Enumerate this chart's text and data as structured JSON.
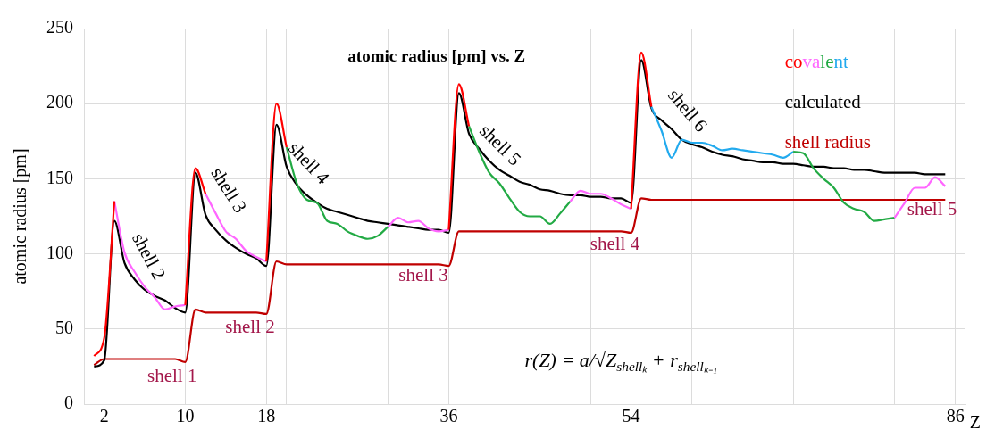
{
  "chart_data": {
    "type": "line",
    "title": "atomic radius [pm] vs. Z",
    "xlabel": "Z",
    "ylabel": "atomic radius [pm]",
    "x": [
      1,
      2,
      3,
      4,
      5,
      6,
      7,
      8,
      9,
      10,
      11,
      12,
      13,
      14,
      15,
      16,
      17,
      18,
      19,
      20,
      21,
      22,
      23,
      24,
      25,
      26,
      27,
      28,
      29,
      30,
      31,
      32,
      33,
      34,
      35,
      36,
      37,
      38,
      39,
      40,
      41,
      42,
      43,
      44,
      45,
      46,
      47,
      48,
      49,
      50,
      51,
      52,
      53,
      54,
      55,
      56,
      57,
      58,
      59,
      60,
      61,
      62,
      63,
      64,
      65,
      66,
      67,
      68,
      69,
      70,
      71,
      72,
      73,
      74,
      75,
      76,
      77,
      78,
      79,
      80,
      81,
      82,
      83,
      84,
      85
    ],
    "series": [
      {
        "name": "co",
        "color": "#ff0000",
        "values": [
          32,
          44,
          135,
          null,
          null,
          null,
          null,
          null,
          null,
          66,
          157,
          140,
          null,
          null,
          null,
          null,
          null,
          95,
          200,
          171,
          null,
          null,
          null,
          null,
          null,
          null,
          null,
          null,
          null,
          null,
          null,
          null,
          null,
          null,
          null,
          116,
          213,
          185,
          null,
          null,
          null,
          null,
          null,
          null,
          null,
          null,
          null,
          null,
          null,
          null,
          null,
          null,
          null,
          130,
          234,
          198,
          null,
          null,
          null,
          null,
          null,
          null,
          null,
          null,
          null,
          null,
          null,
          null,
          null,
          null,
          null,
          null,
          null,
          null,
          null,
          null,
          null,
          null,
          null,
          null,
          null,
          null,
          null,
          null,
          null
        ]
      },
      {
        "name": "va",
        "color": "#ff66ff",
        "values": [
          null,
          null,
          135,
          101,
          88,
          78,
          71,
          63,
          65,
          66,
          null,
          140,
          127,
          115,
          110,
          102,
          98,
          95,
          null,
          null,
          null,
          null,
          null,
          null,
          null,
          null,
          null,
          null,
          null,
          118,
          124,
          121,
          122,
          117,
          115,
          116,
          null,
          null,
          null,
          null,
          null,
          null,
          null,
          null,
          null,
          null,
          null,
          135,
          142,
          140,
          140,
          137,
          133,
          130,
          null,
          null,
          null,
          null,
          null,
          null,
          null,
          null,
          null,
          null,
          null,
          null,
          null,
          null,
          null,
          null,
          null,
          null,
          null,
          null,
          null,
          null,
          null,
          null,
          null,
          124,
          134,
          144,
          144,
          151,
          145
        ]
      },
      {
        "name": "le",
        "color": "#22aa44",
        "values": [
          null,
          null,
          null,
          null,
          null,
          null,
          null,
          null,
          null,
          null,
          null,
          null,
          null,
          null,
          null,
          null,
          null,
          null,
          null,
          171,
          147,
          136,
          134,
          122,
          120,
          115,
          112,
          110,
          112,
          118,
          null,
          null,
          null,
          null,
          null,
          null,
          null,
          185,
          168,
          154,
          147,
          137,
          128,
          125,
          125,
          120,
          127,
          135,
          null,
          null,
          null,
          null,
          null,
          null,
          null,
          null,
          null,
          null,
          null,
          null,
          null,
          null,
          null,
          null,
          null,
          null,
          null,
          null,
          null,
          168,
          167,
          157,
          150,
          144,
          134,
          130,
          128,
          122,
          123,
          124,
          null,
          null,
          null,
          null,
          null
        ]
      },
      {
        "name": "nt",
        "color": "#22aaee",
        "values": [
          null,
          null,
          null,
          null,
          null,
          null,
          null,
          null,
          null,
          null,
          null,
          null,
          null,
          null,
          null,
          null,
          null,
          null,
          null,
          null,
          null,
          null,
          null,
          null,
          null,
          null,
          null,
          null,
          null,
          null,
          null,
          null,
          null,
          null,
          null,
          null,
          null,
          null,
          null,
          null,
          null,
          null,
          null,
          null,
          null,
          null,
          null,
          null,
          null,
          null,
          null,
          null,
          null,
          null,
          null,
          198,
          182,
          164,
          176,
          174,
          174,
          172,
          169,
          170,
          169,
          168,
          167,
          166,
          164,
          168,
          null,
          null,
          null,
          null,
          null,
          null,
          null,
          null,
          null,
          null,
          null,
          null,
          null,
          null,
          null
        ]
      },
      {
        "name": "calculated",
        "color": "#000000",
        "values": [
          25,
          29,
          122,
          94,
          83,
          76,
          72,
          69,
          64,
          61,
          154,
          126,
          116,
          109,
          104,
          100,
          97,
          92,
          186,
          158,
          146,
          139,
          134,
          130,
          128,
          126,
          124,
          122,
          121,
          120,
          119,
          118,
          117,
          116,
          116,
          114,
          207,
          180,
          170,
          162,
          156,
          152,
          148,
          146,
          143,
          142,
          140,
          139,
          139,
          138,
          138,
          137,
          137,
          134,
          229,
          197,
          189,
          183,
          176,
          173,
          171,
          168,
          166,
          165,
          163,
          162,
          161,
          161,
          160,
          160,
          159,
          158,
          158,
          157,
          157,
          156,
          156,
          155,
          154,
          154,
          154,
          154,
          153,
          153,
          153
        ]
      },
      {
        "name": "shell radius",
        "color": "#c00000",
        "values": [
          26,
          30,
          30,
          30,
          30,
          30,
          30,
          30,
          30,
          28,
          63,
          61,
          61,
          61,
          61,
          61,
          61,
          60,
          95,
          93,
          93,
          93,
          93,
          93,
          93,
          93,
          93,
          93,
          93,
          93,
          93,
          93,
          93,
          93,
          93,
          92,
          115,
          115,
          115,
          115,
          115,
          115,
          115,
          115,
          115,
          115,
          115,
          115,
          115,
          115,
          115,
          115,
          115,
          114,
          137,
          136,
          136,
          136,
          136,
          136,
          136,
          136,
          136,
          136,
          136,
          136,
          136,
          136,
          136,
          136,
          136,
          136,
          136,
          136,
          136,
          136,
          136,
          136,
          136,
          136,
          136,
          136,
          136,
          136,
          136
        ]
      }
    ],
    "xlim": [
      0,
      87
    ],
    "xticks": [
      2,
      10,
      18,
      {
        "value": 20,
        "label": null
      },
      {
        "value": 30,
        "label": null
      },
      36,
      {
        "value": 40,
        "label": null
      },
      {
        "value": 50,
        "label": null
      },
      54,
      {
        "value": 60,
        "label": null
      },
      {
        "value": 70,
        "label": null
      },
      {
        "value": 80,
        "label": null
      },
      86
    ],
    "ylim": [
      0,
      250
    ],
    "yticks": [
      0,
      50,
      100,
      150,
      200,
      250
    ],
    "grid": true,
    "legend": "top right",
    "marker": "none",
    "line_style": "solid",
    "annotations": [
      "shell 1",
      "shell 2",
      "shell 3",
      "shell 4",
      "shell 5",
      "shell 2",
      "shell 3",
      "shell 4",
      "shell 5",
      "shell 6",
      "r(Z) = a/√Z$_{shellₖ}$ + r$_{shellₖ₋₁}$"
    ]
  }
}
